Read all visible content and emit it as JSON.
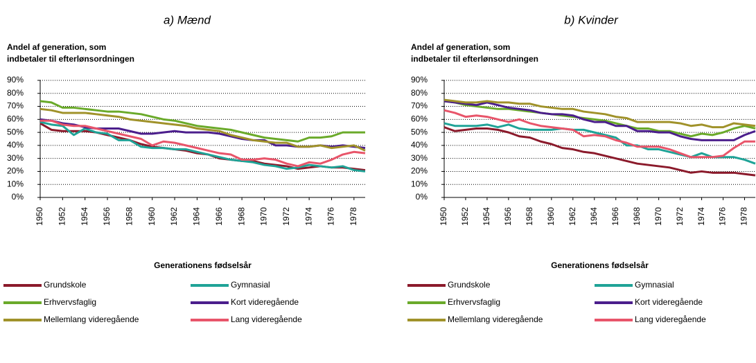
{
  "chart_data": [
    {
      "type": "line",
      "title": "a) Mænd",
      "ylabel": [
        "Andel af generation, som",
        "indbetaler til efterlønsordningen"
      ],
      "xlabel": "Generationens fødselsår",
      "x": [
        1950,
        1951,
        1952,
        1953,
        1954,
        1955,
        1956,
        1957,
        1958,
        1959,
        1960,
        1961,
        1962,
        1963,
        1964,
        1965,
        1966,
        1967,
        1968,
        1969,
        1970,
        1971,
        1972,
        1973,
        1974,
        1975,
        1976,
        1977,
        1978,
        1979
      ],
      "xlim": [
        1950,
        1979
      ],
      "xticks": [
        1950,
        1952,
        1954,
        1956,
        1958,
        1960,
        1962,
        1964,
        1966,
        1968,
        1970,
        1972,
        1974,
        1976,
        1978
      ],
      "ylim": [
        0,
        90
      ],
      "yticks": [
        {
          "value": 0,
          "label": "0%"
        },
        {
          "value": 10,
          "label": "10%"
        },
        {
          "value": 20,
          "label": "20%"
        },
        {
          "value": 30,
          "label": "30%"
        },
        {
          "value": 40,
          "label": "40%"
        },
        {
          "value": 50,
          "label": "50%"
        },
        {
          "value": 60,
          "label": "60%"
        },
        {
          "value": 70,
          "label": "70%"
        },
        {
          "value": 80,
          "label": "80%"
        },
        {
          "value": 90,
          "label": "90%"
        }
      ],
      "grid": true,
      "series": [
        {
          "name": "Grundskole",
          "color": "#8b1a2b",
          "values": [
            57,
            52,
            51,
            51,
            51,
            50,
            48,
            46,
            44,
            41,
            39,
            38,
            37,
            36,
            34,
            33,
            30,
            29,
            28,
            28,
            26,
            25,
            24,
            22,
            23,
            24,
            23,
            23,
            22,
            21
          ]
        },
        {
          "name": "Gymnasial",
          "color": "#1fa397",
          "values": [
            58,
            56,
            55,
            48,
            53,
            50,
            49,
            44,
            44,
            39,
            38,
            38,
            37,
            37,
            35,
            33,
            31,
            29,
            28,
            27,
            25,
            24,
            22,
            23,
            25,
            24,
            23,
            24,
            21,
            20
          ]
        },
        {
          "name": "Erhvervsfaglig",
          "color": "#6aaa2a",
          "values": [
            74,
            73,
            69,
            69,
            68,
            67,
            66,
            66,
            65,
            64,
            62,
            60,
            59,
            57,
            55,
            54,
            53,
            52,
            50,
            48,
            46,
            45,
            44,
            43,
            46,
            46,
            47,
            50,
            50,
            50
          ]
        },
        {
          "name": "Kort videregående",
          "color": "#4b1e8c",
          "values": [
            60,
            59,
            57,
            56,
            54,
            53,
            53,
            53,
            51,
            49,
            49,
            50,
            51,
            50,
            50,
            50,
            49,
            47,
            45,
            44,
            44,
            40,
            40,
            39,
            39,
            40,
            39,
            40,
            39,
            38
          ]
        },
        {
          "name": "Mellemlang videregående",
          "color": "#a0922a",
          "values": [
            68,
            67,
            65,
            65,
            65,
            64,
            63,
            62,
            60,
            59,
            58,
            57,
            56,
            55,
            53,
            52,
            51,
            48,
            46,
            44,
            43,
            42,
            42,
            39,
            39,
            40,
            38,
            39,
            40,
            36
          ]
        },
        {
          "name": "Lang videregående",
          "color": "#e8556a",
          "values": [
            59,
            59,
            56,
            55,
            55,
            53,
            51,
            49,
            47,
            45,
            40,
            43,
            42,
            40,
            38,
            36,
            34,
            33,
            29,
            29,
            30,
            29,
            26,
            24,
            27,
            26,
            29,
            33,
            35,
            34
          ]
        }
      ]
    },
    {
      "type": "line",
      "title": "b) Kvinder",
      "ylabel": [
        "Andel af generation, som",
        "indbetaler til efterlønsordningen"
      ],
      "xlabel": "Generationens fødselsår",
      "x": [
        1950,
        1951,
        1952,
        1953,
        1954,
        1955,
        1956,
        1957,
        1958,
        1959,
        1960,
        1961,
        1962,
        1963,
        1964,
        1965,
        1966,
        1967,
        1968,
        1969,
        1970,
        1971,
        1972,
        1973,
        1974,
        1975,
        1976,
        1977,
        1978,
        1979
      ],
      "xlim": [
        1950,
        1979
      ],
      "xticks": [
        1950,
        1952,
        1954,
        1956,
        1958,
        1960,
        1962,
        1964,
        1966,
        1968,
        1970,
        1972,
        1974,
        1976,
        1978
      ],
      "ylim": [
        0,
        90
      ],
      "yticks": [
        {
          "value": 0,
          "label": "0%"
        },
        {
          "value": 10,
          "label": "10%"
        },
        {
          "value": 20,
          "label": "20%"
        },
        {
          "value": 30,
          "label": "30%"
        },
        {
          "value": 40,
          "label": "40%"
        },
        {
          "value": 50,
          "label": "50%"
        },
        {
          "value": 60,
          "label": "60%"
        },
        {
          "value": 70,
          "label": "70%"
        },
        {
          "value": 80,
          "label": "80%"
        },
        {
          "value": 90,
          "label": "90%"
        }
      ],
      "grid": true,
      "series": [
        {
          "name": "Grundskole",
          "color": "#8b1a2b",
          "values": [
            54,
            51,
            52,
            53,
            53,
            52,
            50,
            47,
            46,
            43,
            41,
            38,
            37,
            35,
            34,
            32,
            30,
            28,
            26,
            25,
            24,
            23,
            21,
            19,
            20,
            19,
            19,
            19,
            18,
            17
          ]
        },
        {
          "name": "Gymnasial",
          "color": "#1fa397",
          "values": [
            57,
            55,
            55,
            55,
            56,
            54,
            56,
            53,
            52,
            52,
            52,
            53,
            52,
            52,
            50,
            48,
            46,
            40,
            40,
            37,
            37,
            35,
            33,
            31,
            34,
            31,
            31,
            31,
            29,
            26
          ]
        },
        {
          "name": "Erhvervsfaglig",
          "color": "#6aaa2a",
          "values": [
            74,
            73,
            71,
            70,
            69,
            68,
            68,
            67,
            66,
            65,
            64,
            63,
            62,
            61,
            60,
            59,
            57,
            55,
            53,
            53,
            51,
            51,
            49,
            47,
            49,
            48,
            50,
            53,
            55,
            53
          ]
        },
        {
          "name": "Kort videregående",
          "color": "#4b1e8c",
          "values": [
            74,
            73,
            72,
            71,
            73,
            71,
            69,
            68,
            67,
            65,
            64,
            64,
            63,
            60,
            58,
            58,
            55,
            55,
            51,
            51,
            50,
            50,
            47,
            45,
            44,
            44,
            44,
            44,
            48,
            51
          ]
        },
        {
          "name": "Mellemlang videregående",
          "color": "#a0922a",
          "values": [
            75,
            74,
            73,
            73,
            74,
            73,
            73,
            72,
            72,
            70,
            69,
            68,
            68,
            66,
            65,
            64,
            62,
            61,
            58,
            58,
            58,
            58,
            57,
            55,
            56,
            54,
            54,
            57,
            56,
            55
          ]
        },
        {
          "name": "Lang videregående",
          "color": "#e8556a",
          "values": [
            67,
            65,
            62,
            63,
            62,
            60,
            58,
            60,
            57,
            55,
            54,
            53,
            52,
            47,
            48,
            47,
            44,
            42,
            39,
            39,
            39,
            37,
            34,
            31,
            31,
            31,
            32,
            38,
            43,
            43
          ]
        }
      ]
    }
  ]
}
